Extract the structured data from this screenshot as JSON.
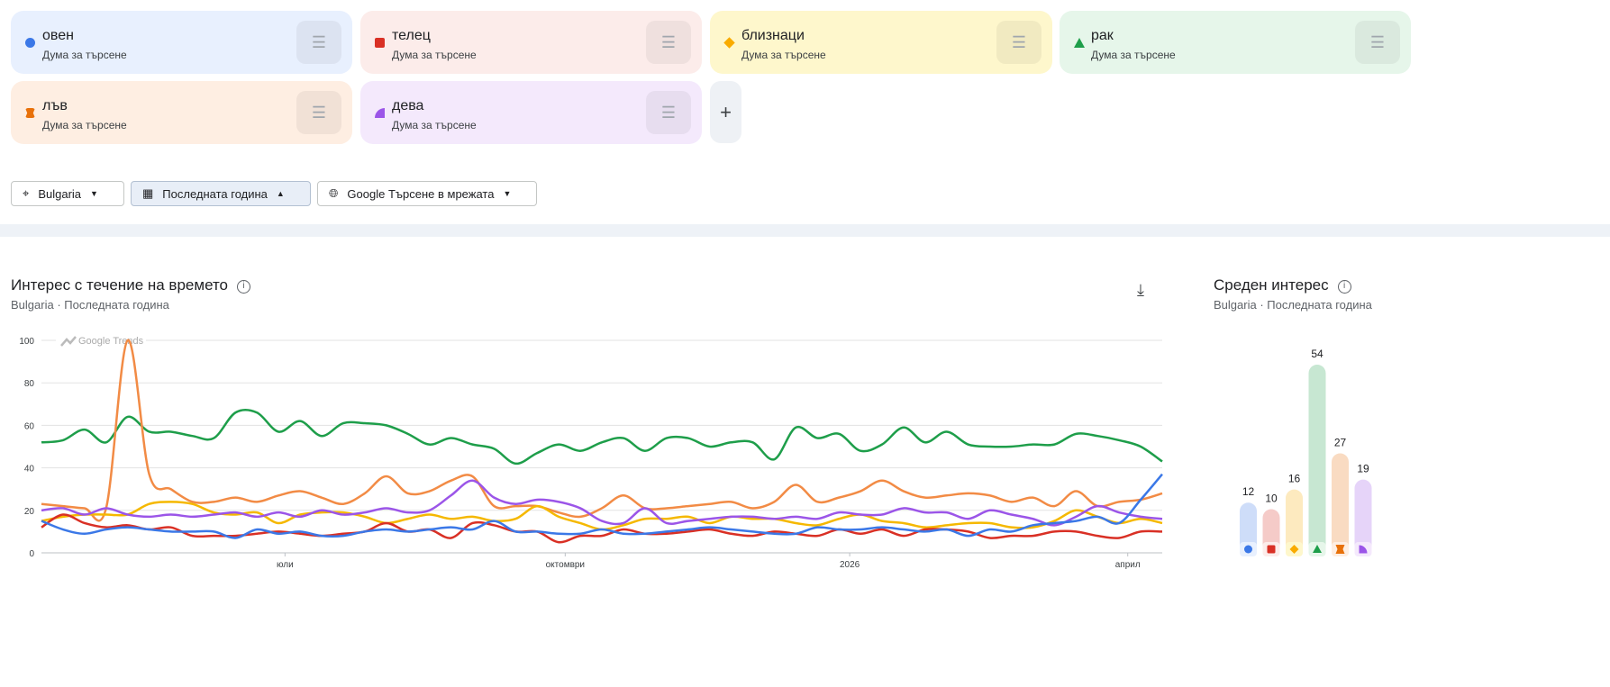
{
  "terms": [
    {
      "label": "овен",
      "sub": "Дума за търсене",
      "color": "#3b78e7",
      "bg": "#e8f0fe",
      "marker": "circle"
    },
    {
      "label": "телец",
      "sub": "Дума за търсене",
      "color": "#d93025",
      "bg": "#fcecea",
      "marker": "square"
    },
    {
      "label": "близнаци",
      "sub": "Дума за търсене",
      "color": "#f9ab00",
      "bg": "#fef7cc",
      "marker": "diamond"
    },
    {
      "label": "рак",
      "sub": "Дума за търсене",
      "color": "#1e9e4a",
      "bg": "#e6f6ea",
      "marker": "triangle"
    },
    {
      "label": "лъв",
      "sub": "Дума за търсене",
      "color": "#e8710a",
      "bg": "#feeee2",
      "marker": "hourglass"
    },
    {
      "label": "дева",
      "sub": "Дума за търсене",
      "color": "#9b55e8",
      "bg": "#f4e9fc",
      "marker": "quarter-circle"
    }
  ],
  "add_label": "+",
  "filters": {
    "location": "Bulgaria",
    "period": "Последната година",
    "property": "Google Търсене в мрежата"
  },
  "over_time": {
    "title": "Интерес с течение на времето",
    "location": "Bulgaria",
    "period": "Последната година",
    "watermark": "Google Trends"
  },
  "average": {
    "title": "Среден интерес",
    "location": "Bulgaria",
    "period": "Последната година"
  },
  "chart_data": [
    {
      "type": "line",
      "ylim": [
        0,
        100
      ],
      "yticks": [
        0,
        20,
        40,
        60,
        80,
        100
      ],
      "grid": true,
      "xtick_labels": [
        "юли",
        "октомври",
        "2026",
        "април"
      ],
      "series_colors": [
        "#3b78e7",
        "#d93025",
        "#f5b800",
        "#1e9e4a",
        "#f28b45",
        "#9b55e8"
      ],
      "series": [
        {
          "term": "овен",
          "values": [
            15,
            11,
            9,
            11,
            12,
            11,
            10,
            10,
            10,
            7,
            11,
            9,
            10,
            8,
            8,
            10,
            11,
            10,
            11,
            12,
            11,
            15,
            10,
            10,
            9,
            9,
            11,
            9,
            9,
            10,
            11,
            12,
            11,
            10,
            9,
            9,
            12,
            11,
            11,
            12,
            11,
            10,
            11,
            8,
            11,
            10,
            13,
            14,
            15,
            17,
            14,
            25,
            37
          ]
        },
        {
          "term": "телец",
          "values": [
            12,
            18,
            14,
            12,
            13,
            11,
            12,
            8,
            8,
            8,
            9,
            10,
            9,
            8,
            9,
            10,
            14,
            10,
            11,
            7,
            14,
            13,
            10,
            10,
            5,
            8,
            8,
            11,
            9,
            9,
            10,
            11,
            9,
            8,
            10,
            9,
            8,
            11,
            9,
            11,
            8,
            11,
            11,
            10,
            7,
            8,
            8,
            10,
            10,
            8,
            7,
            10,
            10
          ]
        },
        {
          "term": "близнаци",
          "values": [
            15,
            17,
            18,
            18,
            18,
            23,
            24,
            23,
            19,
            18,
            19,
            14,
            18,
            19,
            19,
            17,
            14,
            16,
            18,
            16,
            17,
            15,
            16,
            22,
            17,
            14,
            11,
            13,
            16,
            16,
            17,
            14,
            17,
            16,
            16,
            14,
            13,
            16,
            18,
            15,
            14,
            12,
            13,
            14,
            14,
            12,
            12,
            15,
            20,
            17,
            14,
            16,
            14
          ]
        },
        {
          "term": "рак",
          "values": [
            52,
            53,
            58,
            52,
            64,
            57,
            57,
            55,
            54,
            66,
            66,
            57,
            62,
            55,
            61,
            61,
            60,
            56,
            51,
            54,
            51,
            49,
            42,
            47,
            51,
            48,
            52,
            54,
            48,
            54,
            54,
            50,
            52,
            52,
            44,
            59,
            54,
            56,
            48,
            51,
            59,
            52,
            57,
            51,
            50,
            50,
            51,
            51,
            56,
            55,
            53,
            50,
            43
          ]
        },
        {
          "term": "лъв",
          "values": [
            23,
            22,
            21,
            21,
            100,
            37,
            30,
            24,
            24,
            26,
            24,
            27,
            29,
            26,
            23,
            28,
            36,
            28,
            29,
            34,
            36,
            22,
            22,
            22,
            19,
            17,
            21,
            27,
            21,
            21,
            22,
            23,
            24,
            21,
            24,
            32,
            24,
            26,
            29,
            34,
            29,
            26,
            27,
            28,
            27,
            24,
            26,
            22,
            29,
            22,
            24,
            25,
            28
          ]
        },
        {
          "term": "дева",
          "values": [
            20,
            21,
            18,
            21,
            18,
            17,
            18,
            17,
            18,
            19,
            17,
            19,
            17,
            20,
            18,
            19,
            21,
            19,
            20,
            27,
            34,
            26,
            23,
            25,
            24,
            21,
            15,
            14,
            21,
            14,
            15,
            16,
            17,
            17,
            16,
            17,
            16,
            19,
            18,
            18,
            21,
            19,
            19,
            16,
            20,
            18,
            16,
            13,
            17,
            22,
            19,
            17,
            16
          ]
        }
      ]
    },
    {
      "type": "bar",
      "categories": [
        "овен",
        "телец",
        "близнаци",
        "рак",
        "лъв",
        "дева"
      ],
      "values": [
        12,
        10,
        16,
        54,
        27,
        19
      ],
      "value_labels": [
        "12",
        "10",
        "16",
        "54",
        "27",
        "19"
      ]
    }
  ]
}
